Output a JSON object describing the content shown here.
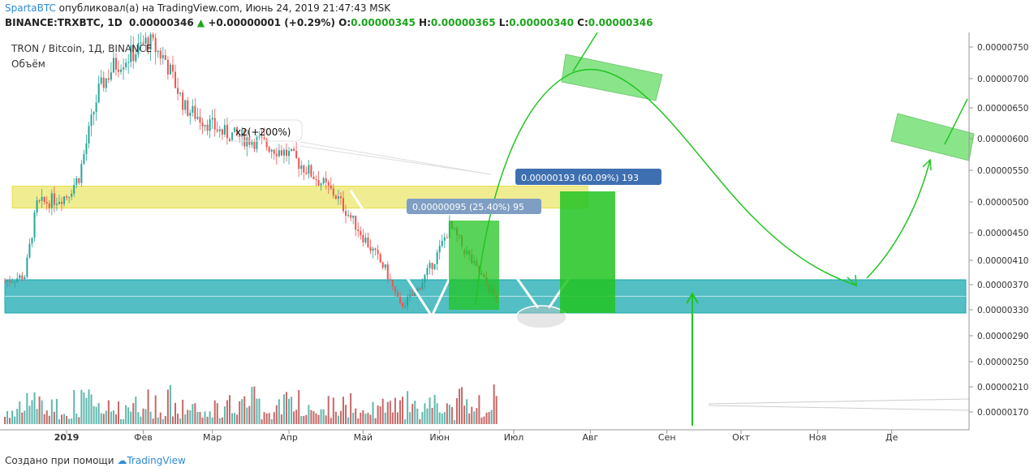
{
  "header": {
    "author": "SpartaBTC",
    "published_text": " опубликовал(а) на TradingView.com, Июнь 24, 2019 21:47:43 MSK",
    "symbol_line": "BINANCE:TRXBTC, 1D",
    "last": "0.00000346",
    "change": "+0.00000001 (+0.29%)",
    "o_label": "O:",
    "o": "0.00000345",
    "h_label": "H:",
    "h": "0.00000365",
    "l_label": "L:",
    "l": "0.00000340",
    "c_label": "C:",
    "c": "0.00000346"
  },
  "legend": {
    "title": "TRON / Bitcoin, 1Д, BINANCE",
    "volume": "Объём"
  },
  "footer": {
    "created_with": "Создано при помощи",
    "brand": "TradingView"
  },
  "colors": {
    "up": "#26a69a",
    "down": "#ef5350",
    "volume_up": "#5fb8ae",
    "volume_down": "#c76868",
    "resistance_zone": "#e6e04a",
    "support_zone": "#1aa8b0",
    "projection": "#22c422",
    "axis_text": "#333333"
  },
  "chart_data": {
    "type": "candlestick",
    "symbol": "TRXBTC",
    "y_axis_ticks": [
      "0.00000750",
      "0.00000700",
      "0.00000650",
      "0.00000600",
      "0.00000550",
      "0.00000500",
      "0.00000450",
      "0.00000410",
      "0.00000370",
      "0.00000330",
      "0.00000290",
      "0.00000250",
      "0.00000210",
      "0.00000170"
    ],
    "x_axis_ticks": [
      "2019",
      "Фев",
      "Мар",
      "Апр",
      "Май",
      "Июн",
      "Июл",
      "Авг",
      "Сен",
      "Окт",
      "Ноя",
      "Де"
    ],
    "x_range": [
      "2018-12-07",
      "2019-12-31"
    ],
    "ohlc_keypoints": [
      {
        "date": "2018-12-07",
        "close": 3.75e-06
      },
      {
        "date": "2018-12-15",
        "close": 3.85e-06
      },
      {
        "date": "2018-12-20",
        "close": 4.95e-06
      },
      {
        "date": "2019-01-01",
        "close": 5.1e-06
      },
      {
        "date": "2019-01-06",
        "close": 5.4e-06
      },
      {
        "date": "2019-01-14",
        "close": 6.8e-06
      },
      {
        "date": "2019-01-20",
        "close": 7.2e-06
      },
      {
        "date": "2019-01-28",
        "close": 7.4e-06
      },
      {
        "date": "2019-02-03",
        "close": 7.6e-06
      },
      {
        "date": "2019-02-10",
        "close": 7.3e-06
      },
      {
        "date": "2019-02-18",
        "close": 6.5e-06
      },
      {
        "date": "2019-03-05",
        "close": 6.1e-06
      },
      {
        "date": "2019-03-20",
        "close": 5.95e-06
      },
      {
        "date": "2019-04-01",
        "close": 5.75e-06
      },
      {
        "date": "2019-04-10",
        "close": 5.45e-06
      },
      {
        "date": "2019-04-20",
        "close": 5.1e-06
      },
      {
        "date": "2019-05-01",
        "close": 4.45e-06
      },
      {
        "date": "2019-05-10",
        "close": 3.95e-06
      },
      {
        "date": "2019-05-16",
        "close": 3.35e-06
      },
      {
        "date": "2019-05-22",
        "close": 3.55e-06
      },
      {
        "date": "2019-06-01",
        "close": 4.25e-06
      },
      {
        "date": "2019-06-05",
        "close": 4.6e-06
      },
      {
        "date": "2019-06-12",
        "close": 4.2e-06
      },
      {
        "date": "2019-06-20",
        "close": 3.7e-06
      },
      {
        "date": "2019-06-24",
        "close": 3.46e-06
      }
    ],
    "zones": [
      {
        "name": "resistance",
        "low": 4.9e-06,
        "high": 5.25e-06,
        "from": "2018-12-10",
        "to": "2019-07-31"
      },
      {
        "name": "support",
        "low": 3.25e-06,
        "high": 3.78e-06,
        "from": "2018-12-07",
        "to": "2019-12-31"
      }
    ],
    "annotations": [
      {
        "text": "x2(+200%)"
      },
      {
        "text": "0.00000095 (25.40%) 95"
      },
      {
        "text": "0.00000193 (60.09%) 193"
      }
    ]
  }
}
